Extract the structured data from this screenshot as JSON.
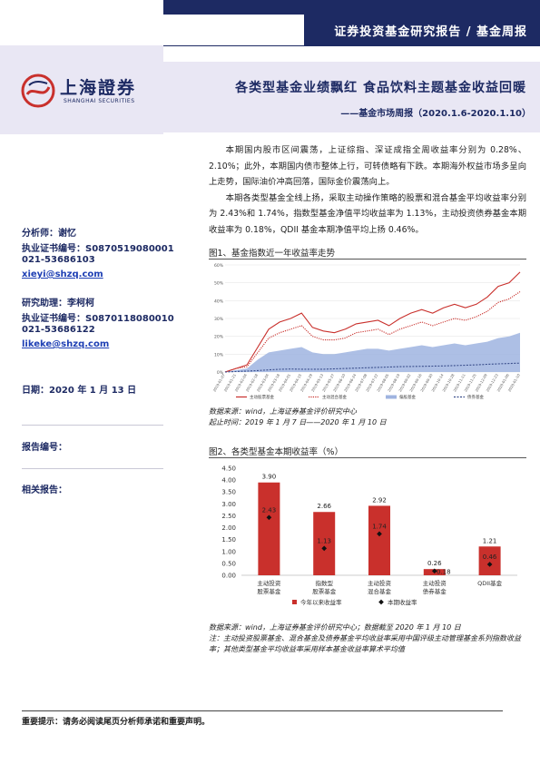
{
  "header": {
    "report_type": "证券投资基金研究报告 / 基金周报"
  },
  "logo": {
    "name_cn": "上海證券",
    "name_en": "SHANGHAI SECURITIES"
  },
  "report": {
    "title": "各类型基金业绩飘红 食品饮料主题基金收益回暖",
    "subtitle": "——基金市场周报（2020.1.6-2020.1.10）"
  },
  "analysts": {
    "analyst_label": "分析师：谢忆",
    "analyst_cert": "执业证书编号：S0870519080001",
    "analyst_phone": "021-53686103",
    "analyst_email": "xieyi@shzq.com",
    "assistant_label": "研究助理：李柯柯",
    "assistant_cert": "执业证书编号：S0870118080010",
    "assistant_phone": "021-53686122",
    "assistant_email": "likeke@shzq.com",
    "date": "日期：2020 年 1 月 13 日",
    "report_no": "报告编号：",
    "related": "相关报告："
  },
  "summary": {
    "p1": "本期国内股市区间震荡，上证综指、深证成指全周收益率分别为 0.28%、2.10%；此外，本期国内债市整体上行，可转债略有下跌。本期海外权益市场多呈向上走势，国际油价冲高回落，国际金价震荡向上。",
    "p2": "本期各类型基金全线上扬，采取主动操作策略的股票和混合基金平均收益率分别为 2.43%和 1.74%，指数型基金净值平均收益率为 1.13%，主动投资债券基金本期收益率为 0.18%，QDII 基金本期净值平均上扬 0.46%。"
  },
  "figure1": {
    "caption": "图1、基金指数近一年收益率走势",
    "source1": "数据来源：wind，上海证券基金评价研究中心",
    "source2": "起止时间：2019 年 1 月 7 日——2020 年 1 月 10 日",
    "chart_data": {
      "type": "line",
      "x": [
        "2019-01-07",
        "2019-01-21",
        "2019-02-04",
        "2019-02-18",
        "2019-03-04",
        "2019-03-18",
        "2019-04-01",
        "2019-04-15",
        "2019-04-29",
        "2019-05-13",
        "2019-05-27",
        "2019-06-10",
        "2019-06-24",
        "2019-07-08",
        "2019-07-22",
        "2019-08-05",
        "2019-08-19",
        "2019-09-02",
        "2019-09-16",
        "2019-09-30",
        "2019-10-14",
        "2019-10-28",
        "2019-11-11",
        "2019-11-25",
        "2019-12-09",
        "2019-12-23",
        "2020-01-06",
        "2020-01-10"
      ],
      "ylim": [
        0,
        60
      ],
      "yticks": [
        "0%",
        "10%",
        "20%",
        "30%",
        "40%",
        "50%",
        "60%"
      ],
      "series": [
        {
          "name": "主动股票基金",
          "style": "solid",
          "color": "#c9302c",
          "values": [
            0,
            2,
            4,
            14,
            24,
            28,
            30,
            33,
            25,
            23,
            22,
            24,
            27,
            28,
            29,
            26,
            30,
            33,
            35,
            33,
            36,
            38,
            36,
            38,
            42,
            48,
            50,
            56
          ]
        },
        {
          "name": "主动混合基金",
          "style": "dotted",
          "color": "#c9302c",
          "values": [
            0,
            2,
            3,
            11,
            19,
            22,
            24,
            26,
            20,
            18,
            18,
            19,
            22,
            23,
            24,
            21,
            24,
            26,
            28,
            26,
            28,
            30,
            29,
            31,
            34,
            39,
            41,
            45
          ]
        },
        {
          "name": "偏股基金",
          "style": "area",
          "color": "#9fb4e0",
          "values": [
            0,
            1,
            2,
            7,
            11,
            12,
            13,
            14,
            11,
            10,
            10,
            11,
            12,
            13,
            13,
            12,
            13,
            14,
            15,
            14,
            15,
            16,
            15,
            16,
            17,
            19,
            20,
            22
          ]
        },
        {
          "name": "债券基金",
          "style": "dashed",
          "color": "#3a4e8c",
          "values": [
            0,
            0.3,
            0.5,
            0.8,
            1.2,
            1.5,
            1.7,
            1.6,
            1.5,
            1.6,
            1.8,
            2,
            2.2,
            2.4,
            2.6,
            2.8,
            3,
            3.1,
            3.2,
            3.3,
            3.4,
            3.6,
            3.8,
            4,
            4.3,
            4.6,
            4.8,
            5
          ]
        }
      ]
    }
  },
  "figure2": {
    "caption": "图2、各类型基金本期收益率（%）",
    "source1": "数据来源：wind，上海证券基金评价研究中心；数据截至 2020 年 1 月 10 日",
    "source2": "注：主动投资股票基金、混合基金及债券基金平均收益率采用中国评级主动管理基金系列指数收益率；其他类型基金平均收益率采用样本基金收益率算术平均值",
    "chart_data": {
      "type": "bar",
      "categories": [
        "主动投资\n股票基金",
        "指数型\n股票基金",
        "主动投资\n混合基金",
        "主动投资\n债券基金",
        "QDII基金"
      ],
      "series": [
        {
          "name": "今年以来收益率",
          "color": "#c9302c",
          "values": [
            3.9,
            2.66,
            2.92,
            0.26,
            1.21
          ]
        },
        {
          "name": "本期收益率",
          "color": "#111111",
          "values": [
            2.43,
            1.13,
            1.74,
            0.18,
            0.46
          ]
        }
      ],
      "ylim": [
        0,
        4.5
      ],
      "yticks": [
        "0.00",
        "0.50",
        "1.00",
        "1.50",
        "2.00",
        "2.50",
        "3.00",
        "3.50",
        "4.00",
        "4.50"
      ],
      "value_labels_ytd": [
        "3.90",
        "2.66",
        "2.92",
        "0.26",
        "1.21"
      ],
      "value_labels_period": [
        "2.43",
        "1.13",
        "1.74",
        "0.18",
        "0.46"
      ]
    }
  },
  "footer": {
    "notice": "重要提示：请务必阅读尾页分析师承诺和重要声明。"
  }
}
